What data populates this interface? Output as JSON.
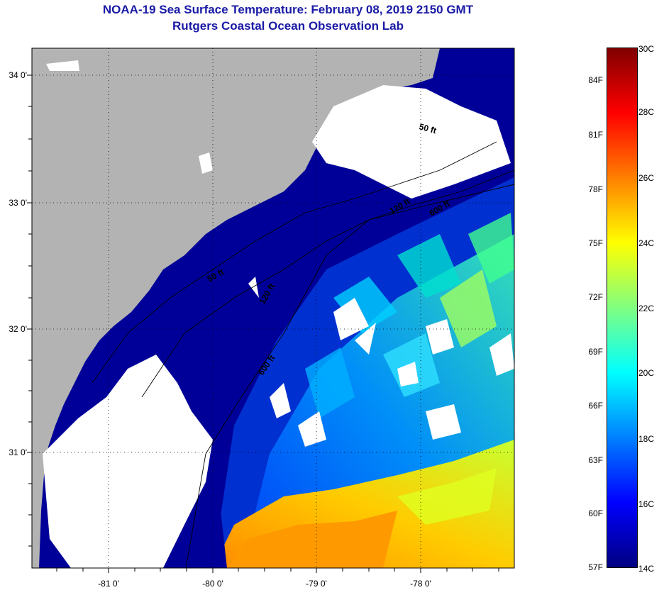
{
  "title": "NOAA-19 Sea Surface Temperature:  February 08, 2019 2150 GMT",
  "subtitle": "Rutgers Coastal Ocean Observation Lab",
  "lat_labels": [
    "34 0'",
    "33 0'",
    "32 0'",
    "31 0'"
  ],
  "lon_labels": [
    "-81 0'",
    "-80 0'",
    "-79 0'",
    "-78 0'"
  ],
  "colorbar": {
    "f_labels": [
      "84F",
      "81F",
      "78F",
      "75F",
      "72F",
      "69F",
      "66F",
      "63F",
      "60F",
      "57F"
    ],
    "c_labels": [
      "30C",
      "28C",
      "26C",
      "24C",
      "22C",
      "20C",
      "18C",
      "16C",
      "14C"
    ],
    "colors": [
      "#000080",
      "#0000ff",
      "#0080ff",
      "#00ffff",
      "#80ff80",
      "#ffff00",
      "#ff8000",
      "#ff0000",
      "#800000"
    ]
  },
  "contours": [
    "50 ft",
    "50 ft",
    "120 ft",
    "600 ft",
    "120 ft",
    "600 ft"
  ],
  "colors": {
    "land": "#b3b3b3",
    "cloud": "#ffffff",
    "shelf": "#000099",
    "title": "#1a1aa6"
  }
}
